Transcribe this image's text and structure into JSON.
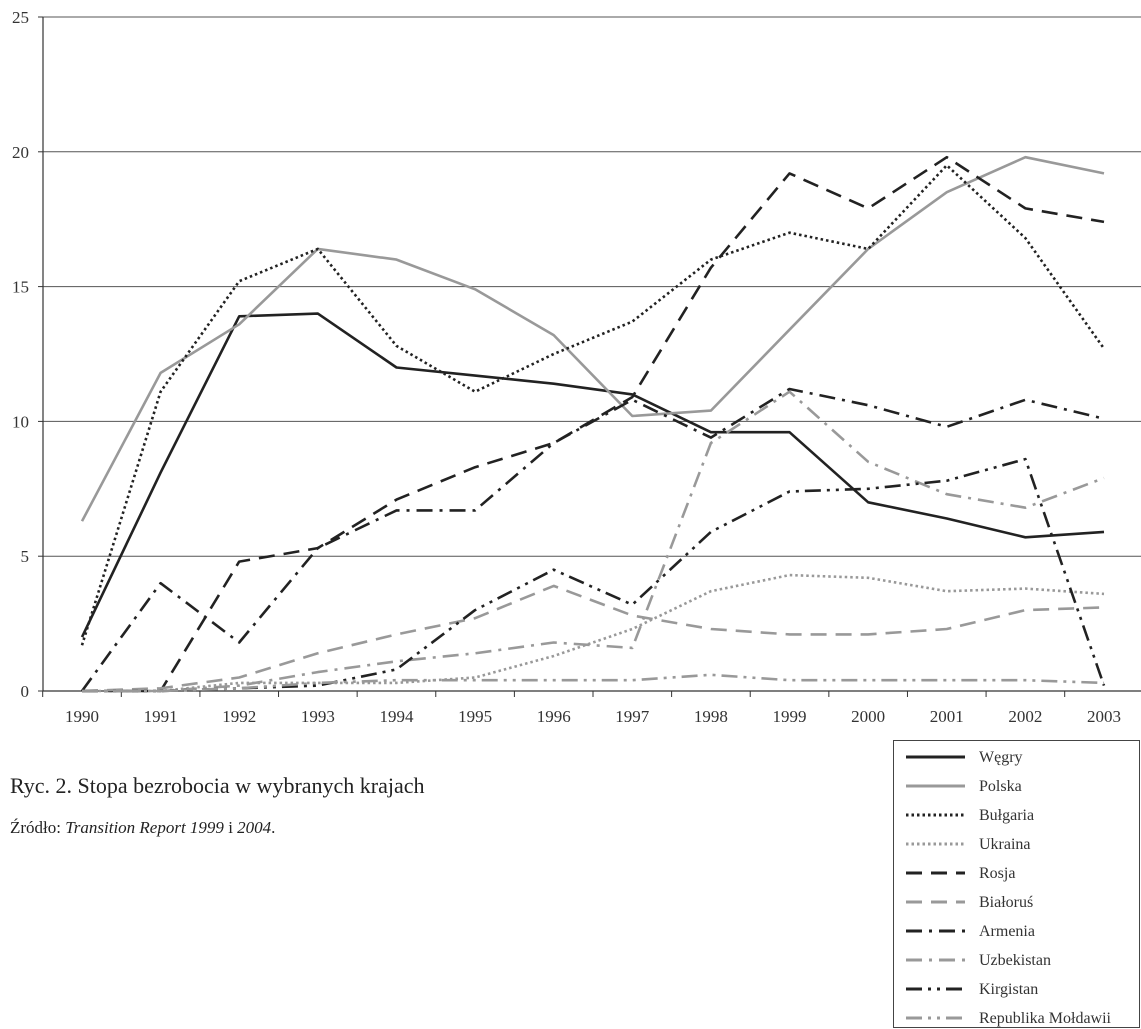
{
  "chart_data": {
    "type": "line",
    "x": [
      "1990",
      "1991",
      "1992",
      "1993",
      "1994",
      "1995",
      "1996",
      "1997",
      "1998",
      "1999",
      "2000",
      "2001",
      "2002",
      "2003"
    ],
    "ylim": [
      0,
      25
    ],
    "yticks": [
      "0",
      "5",
      "10",
      "15",
      "20",
      "25"
    ],
    "grid": true,
    "legend_position": "bottom-right",
    "series": [
      {
        "name": "Węgry",
        "color": "#222222",
        "dash": "solid",
        "width": 2.6,
        "values": [
          2.0,
          8.1,
          13.9,
          14.0,
          12.0,
          11.7,
          11.4,
          11.0,
          9.6,
          9.6,
          7.0,
          6.4,
          5.7,
          5.9
        ]
      },
      {
        "name": "Polska",
        "color": "#999999",
        "dash": "solid",
        "width": 2.6,
        "values": [
          6.3,
          11.8,
          13.6,
          16.4,
          16.0,
          14.9,
          13.2,
          10.2,
          10.4,
          13.4,
          16.4,
          18.5,
          19.8,
          19.2
        ]
      },
      {
        "name": "Bułgaria",
        "color": "#222222",
        "dash": "dot",
        "width": 2.6,
        "values": [
          1.7,
          11.1,
          15.2,
          16.4,
          12.8,
          11.1,
          12.5,
          13.7,
          16.0,
          17.0,
          16.4,
          19.5,
          16.8,
          12.7
        ]
      },
      {
        "name": "Ukraina",
        "color": "#999999",
        "dash": "dot",
        "width": 2.6,
        "values": [
          0.0,
          0.0,
          0.3,
          0.3,
          0.3,
          0.5,
          1.3,
          2.3,
          3.7,
          4.3,
          4.2,
          3.7,
          3.8,
          3.6
        ]
      },
      {
        "name": "Rosja",
        "color": "#222222",
        "dash": "dash",
        "width": 2.6,
        "values": [
          0.0,
          0.0,
          4.8,
          5.3,
          7.1,
          8.3,
          9.2,
          10.9,
          15.7,
          19.2,
          17.9,
          19.8,
          17.9,
          17.4
        ]
      },
      {
        "name": "Białoruś",
        "color": "#999999",
        "dash": "dash",
        "width": 2.6,
        "values": [
          0.0,
          0.1,
          0.5,
          1.4,
          2.1,
          2.7,
          3.9,
          2.8,
          2.3,
          2.1,
          2.1,
          2.3,
          3.0,
          3.1
        ]
      },
      {
        "name": "Armenia",
        "color": "#222222",
        "dash": "dashdot",
        "width": 2.6,
        "values": [
          0.0,
          4.0,
          1.8,
          5.3,
          6.7,
          6.7,
          9.2,
          10.8,
          9.4,
          11.2,
          10.6,
          9.8,
          10.8,
          10.1
        ]
      },
      {
        "name": "Uzbekistan",
        "color": "#999999",
        "dash": "dashdot",
        "width": 2.6,
        "values": [
          0.0,
          0.0,
          0.2,
          0.7,
          1.1,
          1.4,
          1.8,
          1.6,
          9.2,
          11.1,
          8.5,
          7.3,
          6.8,
          7.9
        ]
      },
      {
        "name": "Kirgistan",
        "color": "#222222",
        "dash": "dashdotdot",
        "width": 2.6,
        "values": [
          0.0,
          0.0,
          0.1,
          0.2,
          0.8,
          3.0,
          4.5,
          3.2,
          5.9,
          7.4,
          7.5,
          7.8,
          8.6,
          0.2
        ]
      },
      {
        "name": "Republika Mołdawii",
        "color": "#999999",
        "dash": "dashdotdot",
        "width": 2.6,
        "values": [
          0.0,
          0.0,
          0.1,
          0.3,
          0.4,
          0.4,
          0.4,
          0.4,
          0.6,
          0.4,
          0.4,
          0.4,
          0.4,
          0.3
        ]
      }
    ]
  },
  "caption": "Ryc. 2. Stopa bezrobocia w wybranych krajach",
  "source": {
    "prefix": "Źródło: ",
    "ref1": "Transition Report 1999",
    "mid": " i ",
    "ref2": "2004",
    "suffix": "."
  }
}
